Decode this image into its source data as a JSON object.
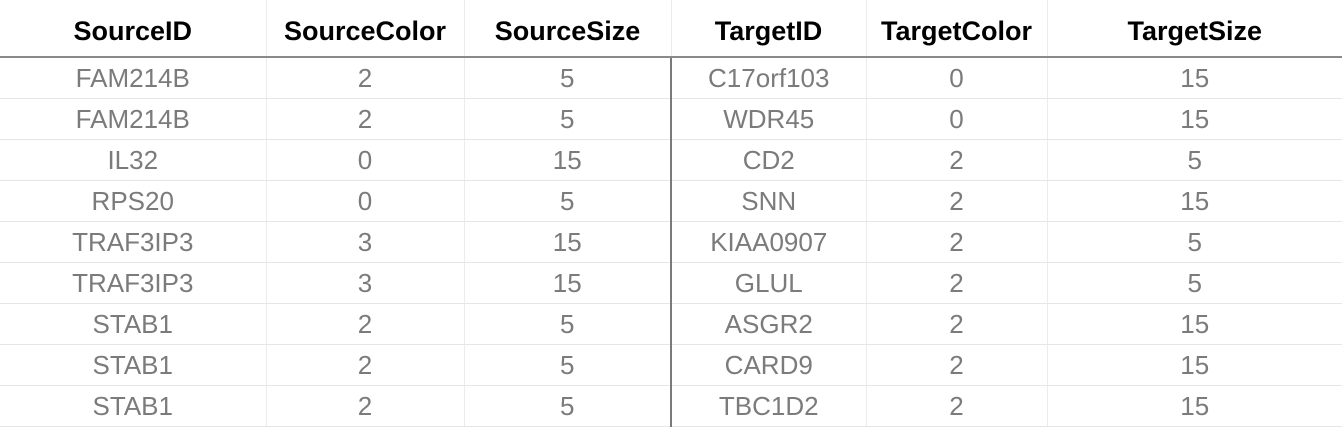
{
  "table": {
    "headers": [
      "SourceID",
      "SourceColor",
      "SourceSize",
      "TargetID",
      "TargetColor",
      "TargetSize"
    ],
    "rows": [
      [
        "FAM214B",
        "2",
        "5",
        "C17orf103",
        "0",
        "15"
      ],
      [
        "FAM214B",
        "2",
        "5",
        "WDR45",
        "0",
        "15"
      ],
      [
        "IL32",
        "0",
        "15",
        "CD2",
        "2",
        "5"
      ],
      [
        "RPS20",
        "0",
        "5",
        "SNN",
        "2",
        "15"
      ],
      [
        "TRAF3IP3",
        "3",
        "15",
        "KIAA0907",
        "2",
        "5"
      ],
      [
        "TRAF3IP3",
        "3",
        "15",
        "GLUL",
        "2",
        "5"
      ],
      [
        "STAB1",
        "2",
        "5",
        "ASGR2",
        "2",
        "15"
      ],
      [
        "STAB1",
        "2",
        "5",
        "CARD9",
        "2",
        "15"
      ],
      [
        "STAB1",
        "2",
        "5",
        "TBC1D2",
        "2",
        "15"
      ]
    ]
  },
  "colors": {
    "header_text": "#000000",
    "cell_text": "#7b7b7b",
    "gridline": "#ececec",
    "header_rule": "#8a8a8a"
  }
}
